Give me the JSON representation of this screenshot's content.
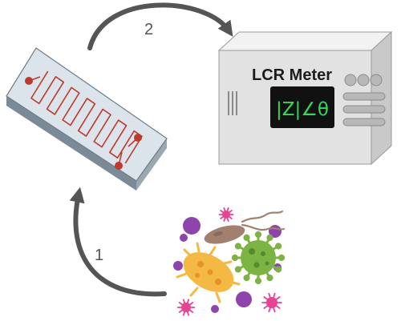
{
  "diagram": {
    "steps": [
      {
        "label": "1",
        "from": "microbes",
        "to": "sensor-chip"
      },
      {
        "label": "2",
        "from": "sensor-chip",
        "to": "lcr-meter"
      }
    ],
    "device": {
      "title": "LCR Meter",
      "readout": "|Z|∠θ"
    },
    "colors": {
      "arrow": "#555555",
      "electrode": "#c0392b",
      "chip": "#dbe4ea",
      "meter_body": "#e6e6e6",
      "display": "#111111",
      "display_text": "#2edc56",
      "microbe_purple": "#8e44ad",
      "microbe_pink": "#e84393",
      "microbe_brown": "#a1806e",
      "microbe_green": "#7cb342",
      "microbe_yellow": "#f4b942"
    }
  }
}
